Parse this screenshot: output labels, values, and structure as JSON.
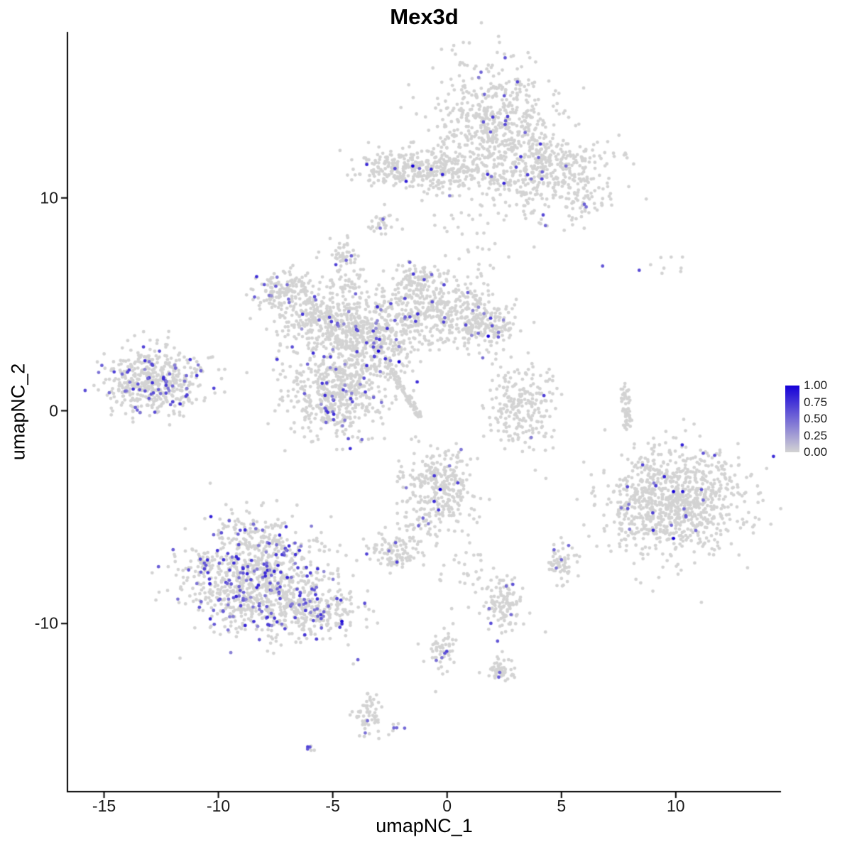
{
  "title": "Mex3d",
  "axes": {
    "x": {
      "label": "umapNC_1",
      "tick_values": [
        -15,
        -10,
        -5,
        0,
        5,
        10
      ],
      "tick_labels": [
        "-15",
        "-10",
        "-5",
        "0",
        "5",
        "10"
      ]
    },
    "y": {
      "label": "umapNC_2",
      "tick_values": [
        -10,
        0,
        10
      ],
      "tick_labels": [
        "-10",
        "0",
        "10"
      ]
    }
  },
  "legend": {
    "labels": [
      "1.00",
      "0.75",
      "0.50",
      "0.25",
      "0.00"
    ]
  },
  "colors": {
    "low": "#d3d3d3",
    "high": "#1500d8",
    "axis": "#000000"
  },
  "chart_data": {
    "type": "scatter",
    "title": "Mex3d",
    "xlabel": "umapNC_1",
    "ylabel": "umapNC_2",
    "xlim": [
      -16.6,
      14.6
    ],
    "ylim": [
      -17.9,
      17.8
    ],
    "grid": false,
    "legend_position": "right",
    "point_radius": 2.4,
    "color_scale": {
      "low_value": 0.0,
      "high_value": 1.0
    },
    "clusters": [
      {
        "cx": 2.1,
        "cy": 13.6,
        "sx": 1.3,
        "sy": 1.4,
        "n": 550,
        "rate": 0.015,
        "vlo": 0.4,
        "vhi": 0.8
      },
      {
        "cx": 4.4,
        "cy": 11.2,
        "sx": 1.3,
        "sy": 1.0,
        "n": 400,
        "rate": 0.02,
        "vlo": 0.4,
        "vhi": 0.8
      },
      {
        "cx": -1.7,
        "cy": 11.4,
        "sx": 1.2,
        "sy": 0.45,
        "n": 260,
        "rate": 0.012,
        "vlo": 0.5,
        "vhi": 0.9
      },
      {
        "cx": 0.4,
        "cy": 11.2,
        "sx": 1.0,
        "sy": 0.45,
        "n": 140,
        "rate": 0.01,
        "vlo": 0.4,
        "vhi": 0.8
      },
      {
        "cx": -2.9,
        "cy": 8.8,
        "sx": 0.28,
        "sy": 0.3,
        "n": 30,
        "rate": 0.03,
        "vlo": 0.4,
        "vhi": 0.6
      },
      {
        "cx": 1.3,
        "cy": 9.3,
        "sx": 1.2,
        "sy": 1.6,
        "n": 55,
        "rate": 0,
        "vlo": 0,
        "vhi": 0
      },
      {
        "cx": 6.1,
        "cy": 9.9,
        "sx": 0.5,
        "sy": 0.7,
        "n": 30,
        "rate": 0.08,
        "vlo": 0.4,
        "vhi": 0.6
      },
      {
        "cx": -7.1,
        "cy": 5.6,
        "sx": 0.65,
        "sy": 0.5,
        "n": 160,
        "rate": 0.06,
        "vlo": 0.3,
        "vhi": 0.8
      },
      {
        "cx": -5.8,
        "cy": 4.4,
        "sx": 0.8,
        "sy": 0.6,
        "n": 200,
        "rate": 0.05,
        "vlo": 0.3,
        "vhi": 0.8
      },
      {
        "cx": -3.7,
        "cy": 3.4,
        "sx": 1.2,
        "sy": 1.0,
        "n": 600,
        "rate": 0.06,
        "vlo": 0.3,
        "vhi": 0.8
      },
      {
        "cx": -0.6,
        "cy": 4.8,
        "sx": 1.3,
        "sy": 0.8,
        "n": 420,
        "rate": 0.05,
        "vlo": 0.3,
        "vhi": 0.8
      },
      {
        "cx": 1.6,
        "cy": 3.9,
        "sx": 0.7,
        "sy": 0.5,
        "n": 160,
        "rate": 0.04,
        "vlo": 0.3,
        "vhi": 0.7
      },
      {
        "cx": -4.9,
        "cy": 0.8,
        "sx": 1.1,
        "sy": 1.0,
        "n": 500,
        "rate": 0.08,
        "vlo": 0.3,
        "vhi": 0.8
      },
      {
        "type": "line",
        "x1": -2.6,
        "y1": 2.2,
        "x2": -1.2,
        "y2": -0.3,
        "jitter": 0.08,
        "n": 90,
        "rate": 0,
        "vlo": 0,
        "vhi": 0
      },
      {
        "cx": -4.6,
        "cy": 7.4,
        "sx": 0.3,
        "sy": 0.35,
        "n": 40,
        "rate": 0.05,
        "vlo": 0.4,
        "vhi": 0.7
      },
      {
        "cx": -4.3,
        "cy": 6.2,
        "sx": 0.4,
        "sy": 0.6,
        "n": 35,
        "rate": 0,
        "vlo": 0,
        "vhi": 0
      },
      {
        "cx": -1.2,
        "cy": 6.2,
        "sx": 0.5,
        "sy": 0.4,
        "n": 60,
        "rate": 0.03,
        "vlo": 0.4,
        "vhi": 0.7
      },
      {
        "cx": -12.7,
        "cy": 1.4,
        "sx": 1.1,
        "sy": 0.75,
        "n": 480,
        "rate": 0.11,
        "vlo": 0.35,
        "vhi": 0.8
      },
      {
        "cx": -14.3,
        "cy": 0.9,
        "sx": 0.5,
        "sy": 0.5,
        "n": 30,
        "rate": 0.05,
        "vlo": 0.4,
        "vhi": 0.7
      },
      {
        "cx": 3.3,
        "cy": 0.2,
        "sx": 0.75,
        "sy": 0.95,
        "n": 220,
        "rate": 0.008,
        "vlo": 0.4,
        "vhi": 0.7
      },
      {
        "type": "line",
        "x1": 7.75,
        "y1": 1.1,
        "x2": 7.9,
        "y2": -0.9,
        "jitter": 0.1,
        "n": 55,
        "rate": 0,
        "vlo": 0,
        "vhi": 0
      },
      {
        "cx": 9.5,
        "cy": 6.9,
        "sx": 0.35,
        "sy": 0.25,
        "n": 8,
        "rate": 0,
        "vlo": 0,
        "vhi": 0
      },
      {
        "cx": 10.1,
        "cy": -4.3,
        "sx": 1.5,
        "sy": 1.25,
        "n": 850,
        "rate": 0.012,
        "vlo": 0.4,
        "vhi": 0.9
      },
      {
        "cx": 8.1,
        "cy": -4.6,
        "sx": 0.5,
        "sy": 0.8,
        "n": 90,
        "rate": 0.03,
        "vlo": 0.4,
        "vhi": 0.7
      },
      {
        "cx": -8.3,
        "cy": -7.9,
        "sx": 1.5,
        "sy": 1.3,
        "n": 950,
        "rate": 0.16,
        "vlo": 0.35,
        "vhi": 0.85
      },
      {
        "cx": -5.8,
        "cy": -9.4,
        "sx": 1.0,
        "sy": 0.55,
        "n": 260,
        "rate": 0.1,
        "vlo": 0.35,
        "vhi": 0.8
      },
      {
        "cx": -8.9,
        "cy": -5.6,
        "sx": 0.8,
        "sy": 0.5,
        "n": 60,
        "rate": 0.08,
        "vlo": 0.4,
        "vhi": 0.7
      },
      {
        "cx": -0.3,
        "cy": -3.6,
        "sx": 0.75,
        "sy": 0.95,
        "n": 300,
        "rate": 0.03,
        "vlo": 0.4,
        "vhi": 0.8
      },
      {
        "cx": -1.4,
        "cy": -5.6,
        "sx": 0.5,
        "sy": 0.6,
        "n": 40,
        "rate": 0.08,
        "vlo": 0.4,
        "vhi": 0.7
      },
      {
        "cx": -2.3,
        "cy": -6.7,
        "sx": 0.55,
        "sy": 0.4,
        "n": 100,
        "rate": 0.06,
        "vlo": 0.4,
        "vhi": 0.7
      },
      {
        "cx": 5.0,
        "cy": -7.1,
        "sx": 0.3,
        "sy": 0.4,
        "n": 60,
        "rate": 0.05,
        "vlo": 0.4,
        "vhi": 0.6
      },
      {
        "cx": 2.4,
        "cy": -9.0,
        "sx": 0.45,
        "sy": 0.6,
        "n": 120,
        "rate": 0.05,
        "vlo": 0.4,
        "vhi": 0.7
      },
      {
        "cx": 0.9,
        "cy": -7.4,
        "sx": 0.5,
        "sy": 0.7,
        "n": 25,
        "rate": 0,
        "vlo": 0,
        "vhi": 0
      },
      {
        "cx": -0.1,
        "cy": -11.3,
        "sx": 0.35,
        "sy": 0.45,
        "n": 55,
        "rate": 0.05,
        "vlo": 0.4,
        "vhi": 0.7
      },
      {
        "cx": 2.3,
        "cy": -12.2,
        "sx": 0.3,
        "sy": 0.35,
        "n": 50,
        "rate": 0.05,
        "vlo": 0.4,
        "vhi": 0.6
      },
      {
        "cx": -3.5,
        "cy": -14.2,
        "sx": 0.3,
        "sy": 0.55,
        "n": 60,
        "rate": 0.02,
        "vlo": 0.4,
        "vhi": 0.6
      },
      {
        "cx": -2.3,
        "cy": -14.9,
        "sx": 0.18,
        "sy": 0.15,
        "n": 6,
        "rate": 0.3,
        "vlo": 0.4,
        "vhi": 0.6
      },
      {
        "cx": -6.1,
        "cy": -15.9,
        "sx": 0.18,
        "sy": 0.12,
        "n": 5,
        "rate": 0.35,
        "vlo": 0.5,
        "vhi": 0.7
      }
    ],
    "extra_grey_points": [
      [
        3.8,
        4.15
      ],
      [
        1.6,
        -1.2
      ],
      [
        -1.5,
        -2.8
      ],
      [
        6.2,
        -5.9
      ],
      [
        4.3,
        -10.4
      ],
      [
        0.2,
        -9.3
      ],
      [
        -0.5,
        -13.2
      ],
      [
        -4.1,
        -11.9
      ],
      [
        12.9,
        -4.0
      ],
      [
        6.9,
        -0.9
      ]
    ],
    "highlight_points": [
      [
        -1.5,
        11.5,
        1.0
      ],
      [
        -0.2,
        11.1,
        0.85
      ],
      [
        2.5,
        14.8,
        0.6
      ],
      [
        2.0,
        13.8,
        0.7
      ],
      [
        1.9,
        13.1,
        0.6
      ],
      [
        4.0,
        11.9,
        0.55
      ],
      [
        5.2,
        11.5,
        0.5
      ],
      [
        6.0,
        9.7,
        0.55
      ],
      [
        4.2,
        9.2,
        0.65
      ],
      [
        4.3,
        8.7,
        0.5
      ],
      [
        6.8,
        6.8,
        0.6
      ],
      [
        8.4,
        6.6,
        0.65
      ],
      [
        -3.0,
        2.8,
        1.0
      ],
      [
        -2.1,
        2.3,
        1.0
      ],
      [
        1.8,
        3.5,
        1.0
      ],
      [
        -0.3,
        -3.7,
        1.0
      ],
      [
        9.5,
        -3.1,
        0.85
      ],
      [
        9.9,
        -3.8,
        1.0
      ],
      [
        10.3,
        -3.8,
        0.9
      ],
      [
        11.2,
        -2.0,
        0.6
      ],
      [
        11.7,
        -2.1,
        0.65
      ],
      [
        9.9,
        -6.0,
        1.0
      ],
      [
        11.2,
        -4.2,
        0.5
      ],
      [
        7.9,
        -4.6,
        0.6
      ],
      [
        -4.6,
        -9.9,
        0.95
      ],
      [
        -3.9,
        -11.7,
        0.55
      ],
      [
        -0.1,
        -11.4,
        0.6
      ],
      [
        2.3,
        -12.3,
        0.5
      ],
      [
        -2.2,
        -14.9,
        0.5
      ],
      [
        -6.1,
        -15.9,
        0.6
      ],
      [
        5.0,
        -7.0,
        0.5
      ],
      [
        -2.8,
        9.0,
        0.5
      ],
      [
        -12.4,
        1.5,
        0.8
      ]
    ]
  }
}
